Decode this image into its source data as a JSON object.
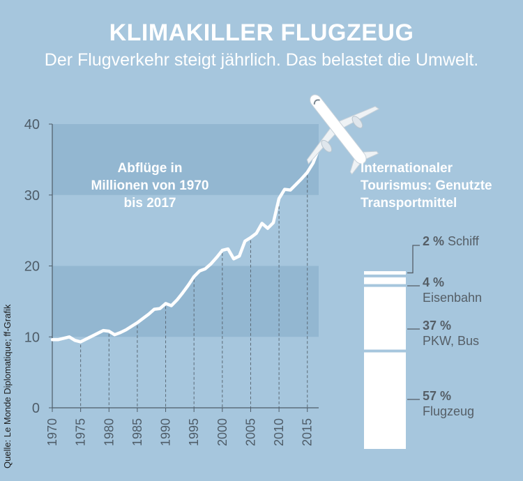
{
  "title": "KLIMAKILLER FLUGZEUG",
  "subtitle": "Der Flugverkehr steigt jährlich. Das belastet die Umwelt.",
  "source": "Quelle: Le Monde Diplomatique; ff-Grafik",
  "colors": {
    "background": "#a6c6dd",
    "band": "#93b7d1",
    "line": "#ffffff",
    "bar": "#ffffff",
    "text_dark": "#555e66"
  },
  "icons": [
    "airplane-icon"
  ],
  "chart_data": [
    {
      "type": "line",
      "title": "Abflüge in Millionen von 1970 bis 2017",
      "xlabel": "",
      "ylabel": "",
      "x": [
        1970,
        1971,
        1972,
        1973,
        1974,
        1975,
        1976,
        1977,
        1978,
        1979,
        1980,
        1981,
        1982,
        1983,
        1984,
        1985,
        1986,
        1987,
        1988,
        1989,
        1990,
        1991,
        1992,
        1993,
        1994,
        1995,
        1996,
        1997,
        1998,
        1999,
        2000,
        2001,
        2002,
        2003,
        2004,
        2005,
        2006,
        2007,
        2008,
        2009,
        2010,
        2011,
        2012,
        2013,
        2014,
        2015,
        2016,
        2017
      ],
      "series": [
        {
          "values": [
            9.6,
            9.6,
            9.8,
            10.0,
            9.5,
            9.3,
            9.7,
            10.1,
            10.5,
            10.9,
            10.8,
            10.3,
            10.6,
            11.0,
            11.5,
            12.0,
            12.6,
            13.2,
            13.9,
            14.0,
            14.7,
            14.4,
            15.2,
            16.2,
            17.3,
            18.5,
            19.3,
            19.6,
            20.3,
            21.2,
            22.2,
            22.4,
            21.0,
            21.4,
            23.5,
            24.0,
            24.6,
            26.0,
            25.3,
            26.1,
            29.5,
            30.8,
            30.7,
            31.5,
            32.3,
            33.2,
            34.5,
            36.5
          ]
        }
      ],
      "xlim": [
        1970,
        2017
      ],
      "ylim": [
        0,
        40
      ],
      "y_ticks": [
        0,
        10,
        20,
        30,
        40
      ],
      "x_ticks": [
        1970,
        1975,
        1980,
        1985,
        1990,
        1995,
        2000,
        2005,
        2010,
        2015
      ],
      "grid": "horizontal bands 10–20 and 30–40, dashed drop lines every 5 years"
    },
    {
      "type": "bar",
      "title": "Internationaler Tourismus: Genutzte Transportmittel",
      "stacked": true,
      "segments": [
        {
          "pct": "57 %",
          "value": 57,
          "label": "Flugzeug"
        },
        {
          "pct": "37 %",
          "value": 37,
          "label": "PKW, Bus"
        },
        {
          "pct": "4 %",
          "value": 4,
          "label": "Eisenbahn"
        },
        {
          "pct": "2 %",
          "value": 2,
          "label": "Schiff"
        }
      ]
    }
  ]
}
